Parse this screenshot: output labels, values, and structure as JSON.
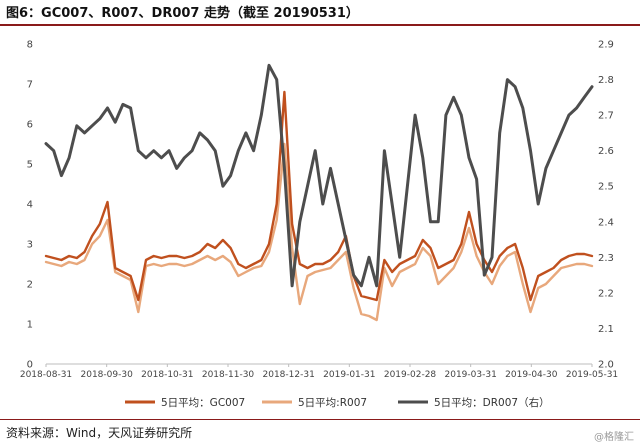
{
  "title": "图6：GC007、R007、DR007 走势（截至 20190531）",
  "source": "资料来源：Wind，天风证券研究所",
  "watermark": "@格隆汇",
  "chart_data": {
    "type": "line",
    "x_labels": [
      "2018-08-31",
      "2018-09-30",
      "2018-10-31",
      "2018-11-30",
      "2018-12-31",
      "2019-01-31",
      "2019-02-28",
      "2019-03-31",
      "2019-04-30",
      "2019-05-31"
    ],
    "y_left": {
      "ticks": [
        "0",
        "1",
        "2",
        "3",
        "4",
        "5",
        "6",
        "7",
        "8"
      ],
      "ylim": [
        0,
        8
      ]
    },
    "y_right": {
      "ticks": [
        "2.0",
        "2.1",
        "2.2",
        "2.3",
        "2.4",
        "2.5",
        "2.6",
        "2.7",
        "2.8",
        "2.9"
      ],
      "ylim": [
        2.0,
        2.9
      ]
    },
    "legend_position": "bottom",
    "series": [
      {
        "name": "5日平均：GC007",
        "axis": "left",
        "color": "#c0501e",
        "values": [
          2.7,
          2.65,
          2.6,
          2.7,
          2.65,
          2.8,
          3.2,
          3.5,
          4.05,
          2.4,
          2.3,
          2.2,
          1.6,
          2.6,
          2.7,
          2.65,
          2.7,
          2.7,
          2.65,
          2.7,
          2.8,
          3.0,
          2.9,
          3.1,
          2.9,
          2.5,
          2.4,
          2.5,
          2.6,
          3.0,
          4.0,
          6.8,
          3.5,
          2.5,
          2.4,
          2.5,
          2.5,
          2.6,
          2.8,
          3.2,
          2.2,
          1.7,
          1.65,
          1.6,
          2.6,
          2.3,
          2.5,
          2.6,
          2.7,
          3.1,
          2.9,
          2.4,
          2.5,
          2.6,
          3.0,
          3.8,
          3.0,
          2.6,
          2.3,
          2.7,
          2.9,
          3.0,
          2.4,
          1.6,
          2.2,
          2.3,
          2.4,
          2.6,
          2.7,
          2.75,
          2.75,
          2.7
        ]
      },
      {
        "name": "5日平均:R007",
        "axis": "left",
        "color": "#e8a87c",
        "values": [
          2.55,
          2.5,
          2.45,
          2.55,
          2.5,
          2.6,
          3.0,
          3.2,
          3.6,
          2.3,
          2.2,
          2.1,
          1.3,
          2.45,
          2.5,
          2.45,
          2.5,
          2.5,
          2.45,
          2.5,
          2.6,
          2.7,
          2.6,
          2.7,
          2.55,
          2.2,
          2.3,
          2.4,
          2.45,
          2.8,
          3.6,
          5.5,
          2.9,
          1.5,
          2.2,
          2.3,
          2.35,
          2.4,
          2.6,
          2.8,
          1.9,
          1.25,
          1.2,
          1.1,
          2.4,
          1.95,
          2.3,
          2.4,
          2.5,
          2.9,
          2.7,
          2.0,
          2.2,
          2.4,
          2.8,
          3.4,
          2.7,
          2.3,
          2.0,
          2.45,
          2.7,
          2.8,
          2.0,
          1.3,
          1.9,
          2.0,
          2.2,
          2.4,
          2.45,
          2.5,
          2.5,
          2.45
        ]
      },
      {
        "name": "5日平均：DR007（右）",
        "axis": "right",
        "color": "#4d4d4d",
        "values": [
          2.62,
          2.6,
          2.53,
          2.58,
          2.67,
          2.65,
          2.67,
          2.69,
          2.72,
          2.68,
          2.73,
          2.72,
          2.6,
          2.58,
          2.6,
          2.58,
          2.6,
          2.55,
          2.58,
          2.6,
          2.65,
          2.63,
          2.6,
          2.5,
          2.53,
          2.6,
          2.65,
          2.6,
          2.7,
          2.84,
          2.8,
          2.55,
          2.22,
          2.4,
          2.5,
          2.6,
          2.45,
          2.55,
          2.45,
          2.35,
          2.25,
          2.22,
          2.3,
          2.22,
          2.6,
          2.45,
          2.3,
          2.5,
          2.7,
          2.58,
          2.4,
          2.4,
          2.7,
          2.75,
          2.7,
          2.58,
          2.52,
          2.25,
          2.3,
          2.65,
          2.8,
          2.78,
          2.72,
          2.6,
          2.45,
          2.55,
          2.6,
          2.65,
          2.7,
          2.72,
          2.75,
          2.78
        ]
      }
    ]
  }
}
